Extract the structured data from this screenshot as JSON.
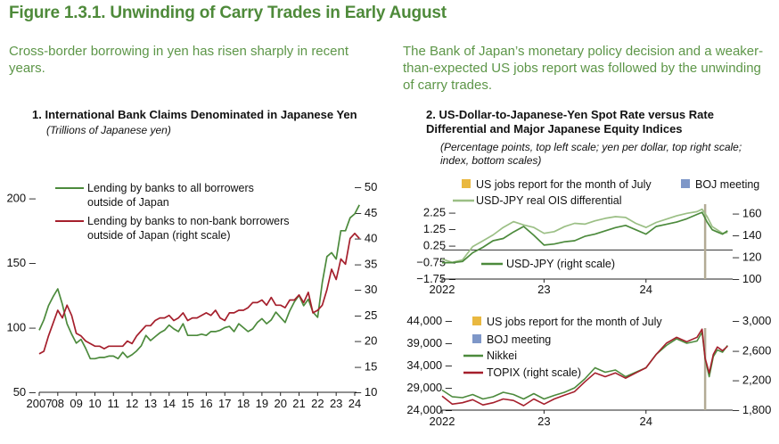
{
  "figure_title": "Figure 1.3.1. Unwinding of Carry Trades in Early August",
  "left_subtitle": "Cross-border borrowing in yen has risen sharply in recent years.",
  "right_subtitle": "The Bank of Japan’s monetary policy decision and a weaker-than-expected US jobs report was followed by the unwinding of carry trades.",
  "colors": {
    "green": "#4c8a3c",
    "light_green": "#9bbf85",
    "red": "#a51f2c",
    "jobs": "#e9b840",
    "boj": "#7e97c8",
    "vline": "#b3ab95",
    "title": "#4e8a3a"
  },
  "chart_data": [
    {
      "type": "line",
      "title": "1. International Bank Claims Denominated in Japanese Yen",
      "subtitle": "(Trillions of Japanese yen)",
      "x_tick_labels": [
        "2007",
        "08",
        "09",
        "10",
        "11",
        "12",
        "13",
        "14",
        "15",
        "16",
        "17",
        "18",
        "19",
        "20",
        "21",
        "22",
        "23",
        "24"
      ],
      "y_left": {
        "ticks": [
          "200 –",
          "150 –",
          "100 –",
          "50 –"
        ],
        "range": [
          50,
          210
        ]
      },
      "y_right": {
        "ticks": [
          "– 50",
          "– 45",
          "– 40",
          "– 35",
          "– 30",
          "– 25",
          "– 20",
          "– 15",
          "– 10"
        ],
        "range": [
          10,
          50
        ]
      },
      "series": [
        {
          "name": "Lending by banks to all borrowers outside of Japan",
          "axis": "left",
          "color": "#4c8a3c",
          "x": [
            2007.0,
            2007.25,
            2007.5,
            2007.75,
            2008.0,
            2008.25,
            2008.5,
            2008.75,
            2009.0,
            2009.25,
            2009.5,
            2009.75,
            2010.0,
            2010.25,
            2010.5,
            2010.75,
            2011.0,
            2011.25,
            2011.5,
            2011.75,
            2012.0,
            2012.25,
            2012.5,
            2012.75,
            2013.0,
            2013.25,
            2013.5,
            2013.75,
            2014.0,
            2014.25,
            2014.5,
            2014.75,
            2015.0,
            2015.25,
            2015.5,
            2015.75,
            2016.0,
            2016.25,
            2016.5,
            2016.75,
            2017.0,
            2017.25,
            2017.5,
            2017.75,
            2018.0,
            2018.25,
            2018.5,
            2018.75,
            2019.0,
            2019.25,
            2019.5,
            2019.75,
            2020.0,
            2020.25,
            2020.5,
            2020.75,
            2021.0,
            2021.25,
            2021.5,
            2021.75,
            2022.0,
            2022.25,
            2022.5,
            2022.75,
            2023.0,
            2023.25,
            2023.5,
            2023.75,
            2024.0,
            2024.25
          ],
          "values": [
            98,
            106,
            117,
            124,
            130,
            118,
            103,
            95,
            88,
            91,
            84,
            76,
            76,
            77,
            77,
            78,
            78,
            76,
            81,
            77,
            79,
            82,
            86,
            94,
            90,
            93,
            96,
            98,
            102,
            99,
            97,
            103,
            94,
            94,
            94,
            95,
            94,
            97,
            97,
            98,
            100,
            101,
            97,
            103,
            100,
            97,
            99,
            104,
            107,
            103,
            106,
            112,
            108,
            104,
            113,
            120,
            125,
            117,
            122,
            112,
            108,
            135,
            155,
            158,
            153,
            175,
            175,
            185,
            188,
            195
          ]
        },
        {
          "name": "Lending by banks to non-bank borrowers outside of Japan (right scale)",
          "axis": "right",
          "color": "#a51f2c",
          "x": [
            2007.0,
            2007.25,
            2007.5,
            2007.75,
            2008.0,
            2008.25,
            2008.5,
            2008.75,
            2009.0,
            2009.25,
            2009.5,
            2009.75,
            2010.0,
            2010.25,
            2010.5,
            2010.75,
            2011.0,
            2011.25,
            2011.5,
            2011.75,
            2012.0,
            2012.25,
            2012.5,
            2012.75,
            2013.0,
            2013.25,
            2013.5,
            2013.75,
            2014.0,
            2014.25,
            2014.5,
            2014.75,
            2015.0,
            2015.25,
            2015.5,
            2015.75,
            2016.0,
            2016.25,
            2016.5,
            2016.75,
            2017.0,
            2017.25,
            2017.5,
            2017.75,
            2018.0,
            2018.25,
            2018.5,
            2018.75,
            2019.0,
            2019.25,
            2019.5,
            2019.75,
            2020.0,
            2020.25,
            2020.5,
            2020.75,
            2021.0,
            2021.25,
            2021.5,
            2021.75,
            2022.0,
            2022.25,
            2022.5,
            2022.75,
            2023.0,
            2023.25,
            2023.5,
            2023.75,
            2024.0,
            2024.25
          ],
          "values": [
            17.5,
            18,
            21,
            23.5,
            26,
            24.5,
            27,
            25,
            21.5,
            21,
            20,
            19.5,
            19,
            19,
            18.5,
            19,
            19,
            19,
            19,
            20,
            19.5,
            21,
            22,
            23,
            23,
            24,
            24.5,
            24.5,
            25,
            24,
            24.5,
            25.5,
            24,
            24.5,
            24.5,
            25,
            25.5,
            25,
            26,
            24.5,
            24,
            25.5,
            25.5,
            26,
            26,
            26.5,
            27.5,
            27.5,
            28,
            27,
            28.5,
            27,
            27,
            26.5,
            28,
            28,
            29,
            27.5,
            29.5,
            25.5,
            26,
            27,
            30,
            34,
            32,
            36,
            35,
            40,
            41,
            40
          ]
        }
      ]
    },
    {
      "type": "line",
      "title": "2. US-Dollar-to-Japanese-Yen Spot Rate versus Rate Differential and Major Japanese Equity Indices",
      "subtitle": "(Percentage points, top left scale; yen per dollar, top right scale; index, bottom scales)",
      "x_tick_labels": [
        "2022",
        "23",
        "24"
      ],
      "top": {
        "y_left": {
          "ticks": [
            "2.25 –",
            "1.25 –",
            "0.25 –",
            "−0.75 –",
            "−1.75 –"
          ],
          "range": [
            -1.75,
            2.75
          ]
        },
        "y_right": {
          "ticks": [
            "– 160",
            "– 140",
            "– 120",
            "– 100"
          ],
          "range": [
            100,
            170
          ]
        },
        "series": [
          {
            "name": "USD-JPY real OIS differential",
            "axis": "left",
            "color": "#9bbf85",
            "x": [
              2022.0,
              2022.1,
              2022.2,
              2022.3,
              2022.4,
              2022.5,
              2022.6,
              2022.7,
              2022.8,
              2022.9,
              2023.0,
              2023.1,
              2023.2,
              2023.3,
              2023.4,
              2023.5,
              2023.6,
              2023.7,
              2023.8,
              2023.9,
              2024.0,
              2024.1,
              2024.2,
              2024.3,
              2024.4,
              2024.5,
              2024.55,
              2024.6,
              2024.65,
              2024.7,
              2024.75,
              2024.8
            ],
            "values": [
              -0.55,
              -0.75,
              -0.6,
              0.2,
              0.55,
              0.9,
              1.35,
              1.7,
              1.5,
              1.35,
              1.0,
              1.1,
              1.4,
              1.6,
              1.55,
              1.75,
              1.9,
              2.0,
              1.95,
              1.6,
              1.35,
              1.65,
              1.85,
              2.05,
              2.2,
              2.3,
              2.45,
              2.0,
              1.4,
              1.2,
              1.0,
              1.05
            ]
          },
          {
            "name": "USD-JPY (right scale)",
            "axis": "right",
            "color": "#4c8a3c",
            "x": [
              2022.0,
              2022.1,
              2022.2,
              2022.3,
              2022.4,
              2022.5,
              2022.6,
              2022.7,
              2022.8,
              2022.9,
              2023.0,
              2023.1,
              2023.2,
              2023.3,
              2023.4,
              2023.5,
              2023.6,
              2023.7,
              2023.8,
              2023.9,
              2024.0,
              2024.1,
              2024.2,
              2024.3,
              2024.4,
              2024.5,
              2024.55,
              2024.6,
              2024.65,
              2024.7,
              2024.75,
              2024.8
            ],
            "values": [
              115,
              115,
              116,
              124,
              129,
              135,
              137,
              143,
              148,
              140,
              131,
              132,
              134,
              135,
              139,
              141,
              144,
              147,
              149,
              145,
              141,
              148,
              150,
              152,
              155,
              159,
              161,
              152,
              145,
              143,
              141,
              144
            ]
          }
        ]
      },
      "bottom": {
        "y_left": {
          "ticks": [
            "44,000 –",
            "39,000 –",
            "34,000 –",
            "29,000 –",
            "24,000 –"
          ],
          "range": [
            24000,
            44000
          ]
        },
        "y_right": {
          "ticks": [
            "– 3,000",
            "– 2,600",
            "– 2,200",
            "– 1,800"
          ],
          "range": [
            1800,
            3000
          ]
        },
        "series": [
          {
            "name": "Nikkei",
            "axis": "left",
            "color": "#4c8a3c",
            "x": [
              2022.0,
              2022.1,
              2022.2,
              2022.3,
              2022.4,
              2022.5,
              2022.6,
              2022.7,
              2022.8,
              2022.9,
              2023.0,
              2023.1,
              2023.2,
              2023.3,
              2023.4,
              2023.5,
              2023.6,
              2023.7,
              2023.8,
              2023.9,
              2024.0,
              2024.1,
              2024.2,
              2024.3,
              2024.4,
              2024.5,
              2024.55,
              2024.58,
              2024.62,
              2024.66,
              2024.7,
              2024.75,
              2024.8
            ],
            "values": [
              28500,
              27000,
              26800,
              27500,
              26500,
              27000,
              28000,
              27500,
              26500,
              27700,
              26500,
              27300,
              28000,
              29000,
              31000,
              33500,
              32500,
              33000,
              31500,
              32500,
              33500,
              36500,
              38500,
              40000,
              39000,
              39500,
              41500,
              35500,
              31500,
              36000,
              37500,
              37000,
              38500
            ]
          },
          {
            "name": "TOPIX (right scale)",
            "axis": "right",
            "color": "#a51f2c",
            "x": [
              2022.0,
              2022.1,
              2022.2,
              2022.3,
              2022.4,
              2022.5,
              2022.6,
              2022.7,
              2022.8,
              2022.9,
              2023.0,
              2023.1,
              2023.2,
              2023.3,
              2023.4,
              2023.5,
              2023.6,
              2023.7,
              2023.8,
              2023.9,
              2024.0,
              2024.1,
              2024.2,
              2024.3,
              2024.4,
              2024.5,
              2024.55,
              2024.58,
              2024.62,
              2024.66,
              2024.7,
              2024.75,
              2024.8
            ],
            "values": [
              1990,
              1880,
              1900,
              1940,
              1870,
              1900,
              1950,
              1930,
              1860,
              1950,
              1880,
              1950,
              2000,
              2050,
              2180,
              2300,
              2250,
              2300,
              2230,
              2300,
              2370,
              2550,
              2700,
              2780,
              2720,
              2780,
              2890,
              2500,
              2300,
              2550,
              2650,
              2600,
              2660
            ]
          }
        ]
      },
      "legend_top": [
        "US jobs report for the month of July",
        "BOJ meeting",
        "USD-JPY real OIS differential",
        "USD-JPY (right scale)"
      ],
      "legend_bottom": [
        "US jobs report for the month of July",
        "BOJ meeting",
        "Nikkei",
        "TOPIX (right scale)"
      ],
      "event_date": 2024.58
    }
  ]
}
